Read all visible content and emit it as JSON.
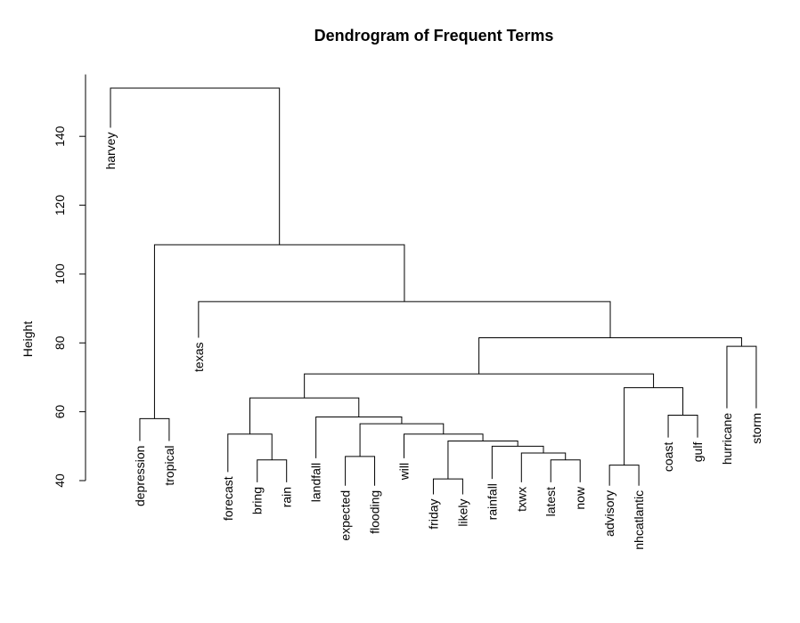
{
  "chart_data": {
    "type": "dendrogram",
    "title": "Dendrogram of Frequent Terms",
    "ylabel": "Height",
    "xlabel": "",
    "ylim": [
      40,
      154
    ],
    "yticks": [
      40,
      60,
      80,
      100,
      120,
      140
    ],
    "leaves": [
      {
        "label": "harvey",
        "height": 142.5
      },
      {
        "label": "depression",
        "height": 51.5
      },
      {
        "label": "tropical",
        "height": 51.5
      },
      {
        "label": "texas",
        "height": 81.5
      },
      {
        "label": "forecast",
        "height": 42.5
      },
      {
        "label": "bring",
        "height": 39.5
      },
      {
        "label": "rain",
        "height": 39.5
      },
      {
        "label": "landfall",
        "height": 46.5
      },
      {
        "label": "expected",
        "height": 38.5
      },
      {
        "label": "flooding",
        "height": 38.5
      },
      {
        "label": "will",
        "height": 46.5
      },
      {
        "label": "friday",
        "height": 36
      },
      {
        "label": "likely",
        "height": 36
      },
      {
        "label": "rainfall",
        "height": 40.5
      },
      {
        "label": "txwx",
        "height": 39.5
      },
      {
        "label": "latest",
        "height": 39.5
      },
      {
        "label": "now",
        "height": 39.5
      },
      {
        "label": "advisory",
        "height": 38.5
      },
      {
        "label": "nhcatlantic",
        "height": 38.5
      },
      {
        "label": "coast",
        "height": 52.5
      },
      {
        "label": "gulf",
        "height": 52.5
      },
      {
        "label": "hurricane",
        "height": 61
      },
      {
        "label": "storm",
        "height": 61
      }
    ],
    "merges": [
      {
        "left": "L1",
        "right": "L2",
        "height": 58
      },
      {
        "left": "L5",
        "right": "L6",
        "height": 46
      },
      {
        "left": "L4",
        "right": "M2",
        "height": 53.5
      },
      {
        "left": "L8",
        "right": "L9",
        "height": 47
      },
      {
        "left": "L11",
        "right": "L12",
        "height": 40.5
      },
      {
        "left": "L16",
        "right": "L15",
        "height": 46
      },
      {
        "left": "L14",
        "right": "M6",
        "height": 48
      },
      {
        "left": "L13",
        "right": "M7",
        "height": 50
      },
      {
        "left": "M5",
        "right": "M8",
        "height": 51.5
      },
      {
        "left": "L10",
        "right": "M9",
        "height": 53.5
      },
      {
        "left": "M4",
        "right": "M10",
        "height": 56.5
      },
      {
        "left": "L7",
        "right": "M11",
        "height": 58.5
      },
      {
        "left": "M3",
        "right": "M12",
        "height": 64
      },
      {
        "left": "L17",
        "right": "L18",
        "height": 44.5
      },
      {
        "left": "L19",
        "right": "L20",
        "height": 59
      },
      {
        "left": "M14",
        "right": "M15",
        "height": 67
      },
      {
        "left": "M13",
        "right": "M16",
        "height": 71
      },
      {
        "left": "L21",
        "right": "L22",
        "height": 79
      },
      {
        "left": "M17",
        "right": "M18",
        "height": 81.5
      },
      {
        "left": "L3",
        "right": "M19",
        "height": 92
      },
      {
        "left": "M1",
        "right": "M20",
        "height": 108.5
      },
      {
        "left": "L0",
        "right": "M21",
        "height": 154
      }
    ]
  }
}
